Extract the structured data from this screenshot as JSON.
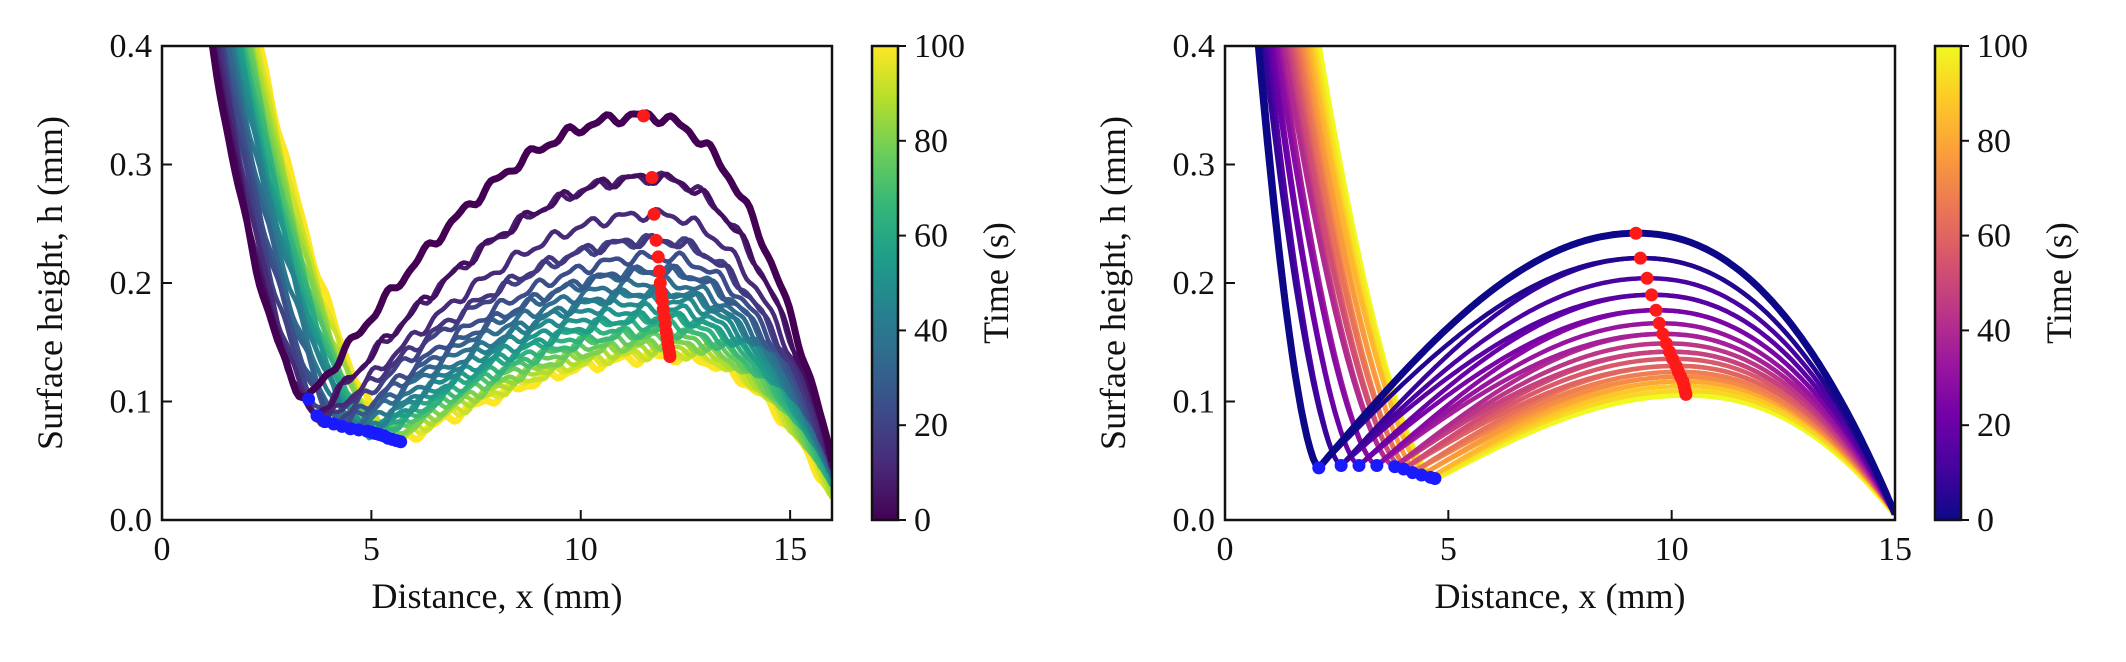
{
  "chart_data": [
    {
      "type": "line",
      "title": "",
      "xlabel": "Distance, x (mm)",
      "ylabel": "Surface height, h (mm)",
      "xlim": [
        0,
        16
      ],
      "ylim": [
        0,
        0.4
      ],
      "xticks": [
        "0",
        "5",
        "10",
        "15"
      ],
      "yticks": [
        "0.0",
        "0.1",
        "0.2",
        "0.3",
        "0.4"
      ],
      "colormap": "viridis",
      "colorbar": {
        "label": "Time (s)",
        "range": [
          0,
          100
        ],
        "ticks": [
          "0",
          "20",
          "40",
          "60",
          "80",
          "100"
        ]
      },
      "noisy_profiles": true,
      "series_summary": {
        "count": 26,
        "time_range_s": [
          0,
          100
        ],
        "x_end_mm": 16.0,
        "h_at_x_end_mm": [
          0.05,
          0.02
        ],
        "left_wall_x_at_top_mm": [
          1.1,
          2.2
        ]
      },
      "peak_markers": {
        "color": "#ff1a1a",
        "points": [
          [
            11.5,
            0.341
          ],
          [
            11.7,
            0.289
          ],
          [
            11.75,
            0.258
          ],
          [
            11.8,
            0.236
          ],
          [
            11.85,
            0.222
          ],
          [
            11.88,
            0.21
          ],
          [
            11.9,
            0.2
          ],
          [
            11.92,
            0.192
          ],
          [
            11.95,
            0.185
          ],
          [
            11.97,
            0.178
          ],
          [
            12.0,
            0.171
          ],
          [
            12.02,
            0.165
          ],
          [
            12.04,
            0.159
          ],
          [
            12.06,
            0.154
          ],
          [
            12.08,
            0.149
          ],
          [
            12.1,
            0.145
          ],
          [
            12.12,
            0.141
          ],
          [
            12.13,
            0.138
          ]
        ]
      },
      "valley_markers": {
        "color": "#1a1aff",
        "points": [
          [
            3.5,
            0.102
          ],
          [
            3.7,
            0.088
          ],
          [
            3.9,
            0.083
          ],
          [
            4.1,
            0.081
          ],
          [
            4.3,
            0.079
          ],
          [
            4.5,
            0.077
          ],
          [
            4.7,
            0.076
          ],
          [
            4.9,
            0.075
          ],
          [
            5.0,
            0.074
          ],
          [
            5.1,
            0.073
          ],
          [
            5.2,
            0.072
          ],
          [
            5.3,
            0.071
          ],
          [
            5.4,
            0.069
          ],
          [
            5.5,
            0.068
          ],
          [
            5.6,
            0.067
          ],
          [
            5.7,
            0.066
          ]
        ]
      }
    },
    {
      "type": "line",
      "title": "",
      "xlabel": "Distance, x (mm)",
      "ylabel": "Surface height, h (mm)",
      "xlim": [
        0,
        15
      ],
      "ylim": [
        0,
        0.4
      ],
      "xticks": [
        "0",
        "5",
        "10",
        "15"
      ],
      "yticks": [
        "0.0",
        "0.1",
        "0.2",
        "0.3",
        "0.4"
      ],
      "colormap": "plasma",
      "colorbar": {
        "label": "Time (s)",
        "range": [
          0,
          100
        ],
        "ticks": [
          "0",
          "20",
          "40",
          "60",
          "80",
          "100"
        ]
      },
      "noisy_profiles": false,
      "series_summary": {
        "count": 26,
        "time_range_s": [
          0,
          100
        ],
        "x_end_mm": 15.0,
        "h_at_x_end_mm": [
          0.005,
          0.005
        ],
        "left_wall_x_at_top_mm": [
          0.7,
          2.0
        ]
      },
      "peak_markers": {
        "color": "#ff1a1a",
        "points": [
          [
            9.2,
            0.242
          ],
          [
            9.3,
            0.221
          ],
          [
            9.45,
            0.204
          ],
          [
            9.55,
            0.19
          ],
          [
            9.65,
            0.177
          ],
          [
            9.72,
            0.166
          ],
          [
            9.8,
            0.157
          ],
          [
            9.88,
            0.149
          ],
          [
            9.95,
            0.142
          ],
          [
            10.02,
            0.136
          ],
          [
            10.1,
            0.13
          ],
          [
            10.15,
            0.125
          ],
          [
            10.2,
            0.121
          ],
          [
            10.25,
            0.117
          ],
          [
            10.28,
            0.113
          ],
          [
            10.3,
            0.109
          ],
          [
            10.32,
            0.106
          ]
        ]
      },
      "valley_markers": {
        "color": "#1a1aff",
        "points": [
          [
            2.1,
            0.044
          ],
          [
            2.6,
            0.046
          ],
          [
            3.0,
            0.046
          ],
          [
            3.4,
            0.046
          ],
          [
            3.8,
            0.045
          ],
          [
            4.0,
            0.043
          ],
          [
            4.2,
            0.04
          ],
          [
            4.4,
            0.038
          ],
          [
            4.6,
            0.036
          ],
          [
            4.7,
            0.035
          ]
        ]
      }
    }
  ]
}
